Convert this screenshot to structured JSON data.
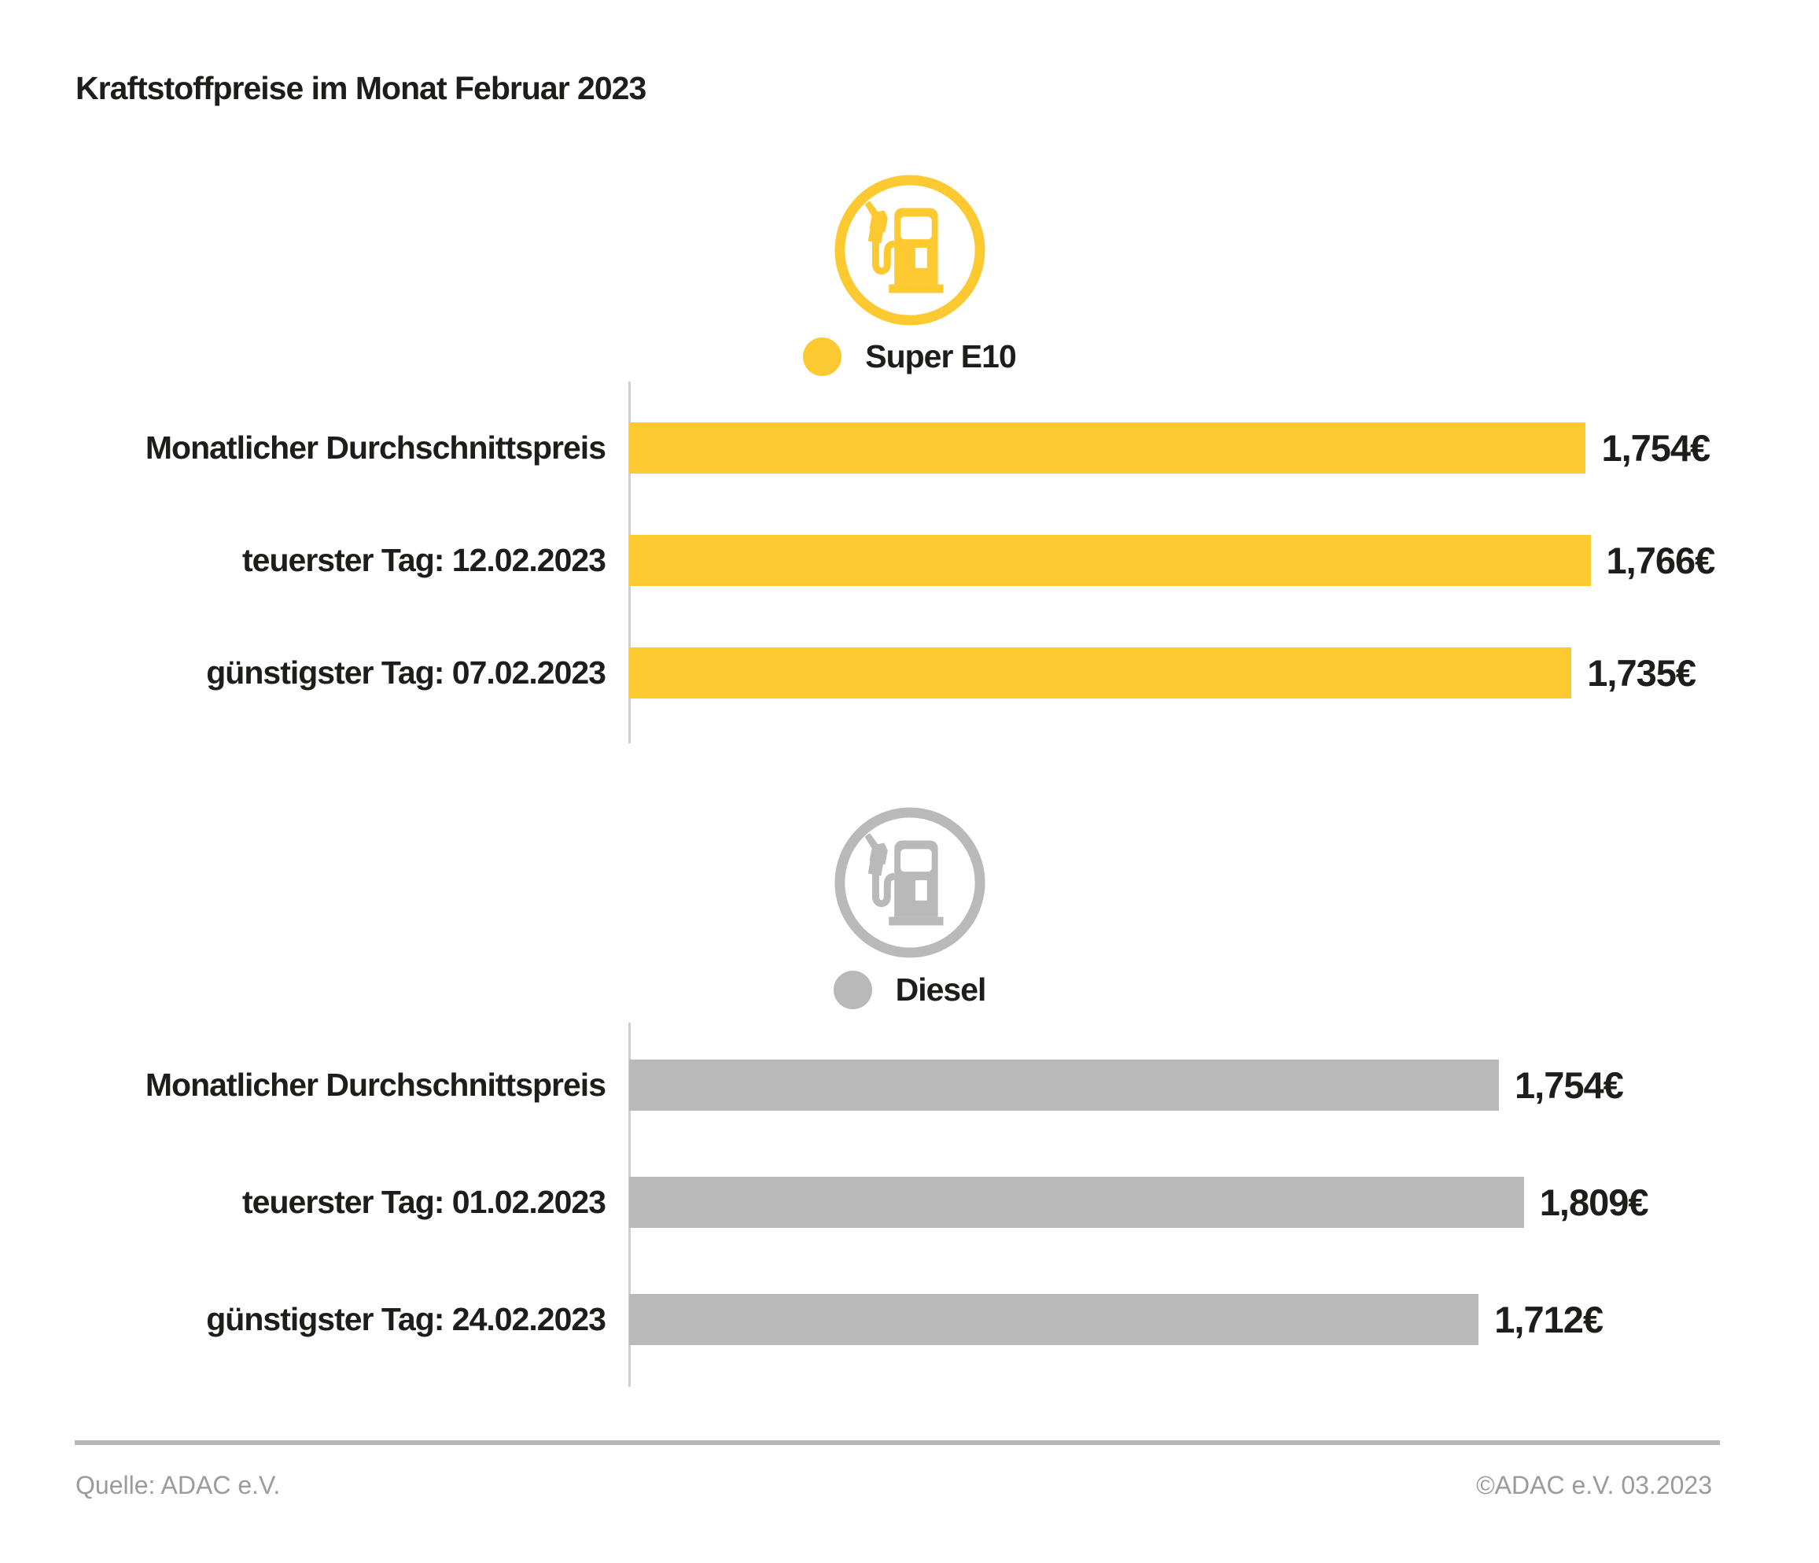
{
  "title": "Kraftstoffpreise im Monat Februar 2023",
  "footer": {
    "source": "Quelle: ADAC e.V.",
    "copyright": "©ADAC e.V. 03.2023"
  },
  "colors": {
    "super_e10": "#FDC931",
    "diesel": "#B9B9B9",
    "axis_line": "#CFCFCF",
    "divider": "#B7B7B7",
    "text": "#1D1D1B",
    "footer_text": "#9B9B9B"
  },
  "chart_data": [
    {
      "type": "bar",
      "orientation": "horizontal",
      "series_name": "Super E10",
      "icon": "fuel-pump-icon",
      "color": "#FDC931",
      "legend_position": "top-center",
      "categories": [
        "Monatlicher Durchschnittspreis",
        "teuerster Tag: 12.02.2023",
        "günstigster Tag: 07.02.2023"
      ],
      "values": [
        1.754,
        1.766,
        1.735
      ],
      "value_labels": [
        "1,754€",
        "1,766€",
        "1,735€"
      ],
      "bar_width_pct": [
        80.4,
        80.8,
        79.2
      ]
    },
    {
      "type": "bar",
      "orientation": "horizontal",
      "series_name": "Diesel",
      "icon": "fuel-pump-icon",
      "color": "#B9B9B9",
      "legend_position": "top-center",
      "categories": [
        "Monatlicher Durchschnittspreis",
        "teuerster Tag: 01.02.2023",
        "günstigster Tag: 24.02.2023"
      ],
      "values": [
        1.754,
        1.809,
        1.712
      ],
      "value_labels": [
        "1,754€",
        "1,809€",
        "1,712€"
      ],
      "bar_width_pct": [
        73.1,
        75.2,
        71.4
      ]
    }
  ]
}
